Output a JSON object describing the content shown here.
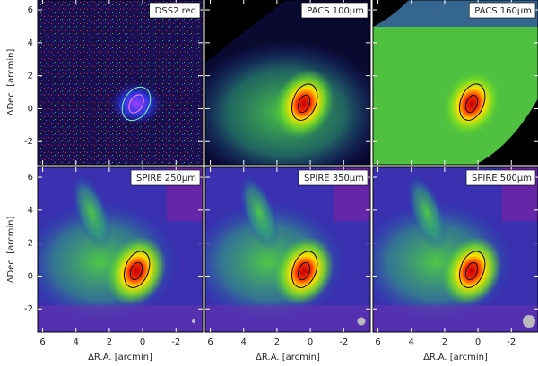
{
  "x_label": "ΔR.A. [arcmin]",
  "y_label": "ΔDec. [arcmin]",
  "chart_data": [
    {
      "type": "image",
      "title": "DSS2 red",
      "xlim": [
        6.3,
        -3.6
      ],
      "ylim": [
        -3.4,
        6.6
      ],
      "xticks": [
        6,
        4,
        2,
        0,
        -2
      ],
      "yticks": [
        -2,
        0,
        2,
        4,
        6
      ]
    },
    {
      "type": "image",
      "title": "PACS 100μm",
      "xlim": [
        6.3,
        -3.6
      ],
      "ylim": [
        -3.4,
        6.6
      ],
      "xticks": [
        6,
        4,
        2,
        0,
        -2
      ],
      "yticks": [
        -2,
        0,
        2,
        4,
        6
      ]
    },
    {
      "type": "image",
      "title": "PACS 160μm",
      "xlim": [
        6.3,
        -3.6
      ],
      "ylim": [
        -3.4,
        6.6
      ],
      "xticks": [
        6,
        4,
        2,
        0,
        -2
      ],
      "yticks": [
        -2,
        0,
        2,
        4,
        6
      ]
    },
    {
      "type": "image",
      "title": "SPIRE 250μm",
      "xlim": [
        6.3,
        -3.6
      ],
      "ylim": [
        -3.4,
        6.6
      ],
      "xticks": [
        6,
        4,
        2,
        0,
        -2
      ],
      "yticks": [
        -2,
        0,
        2,
        4,
        6
      ]
    },
    {
      "type": "image",
      "title": "SPIRE 350μm",
      "xlim": [
        6.3,
        -3.6
      ],
      "ylim": [
        -3.4,
        6.6
      ],
      "xticks": [
        6,
        4,
        2,
        0,
        -2
      ],
      "yticks": [
        -2,
        0,
        2,
        4,
        6
      ]
    },
    {
      "type": "image",
      "title": "SPIRE 500μm",
      "xlim": [
        6.3,
        -3.6
      ],
      "ylim": [
        -3.4,
        6.6
      ],
      "xticks": [
        6,
        4,
        2,
        0,
        -2
      ],
      "yticks": [
        -2,
        0,
        2,
        4,
        6
      ]
    }
  ]
}
